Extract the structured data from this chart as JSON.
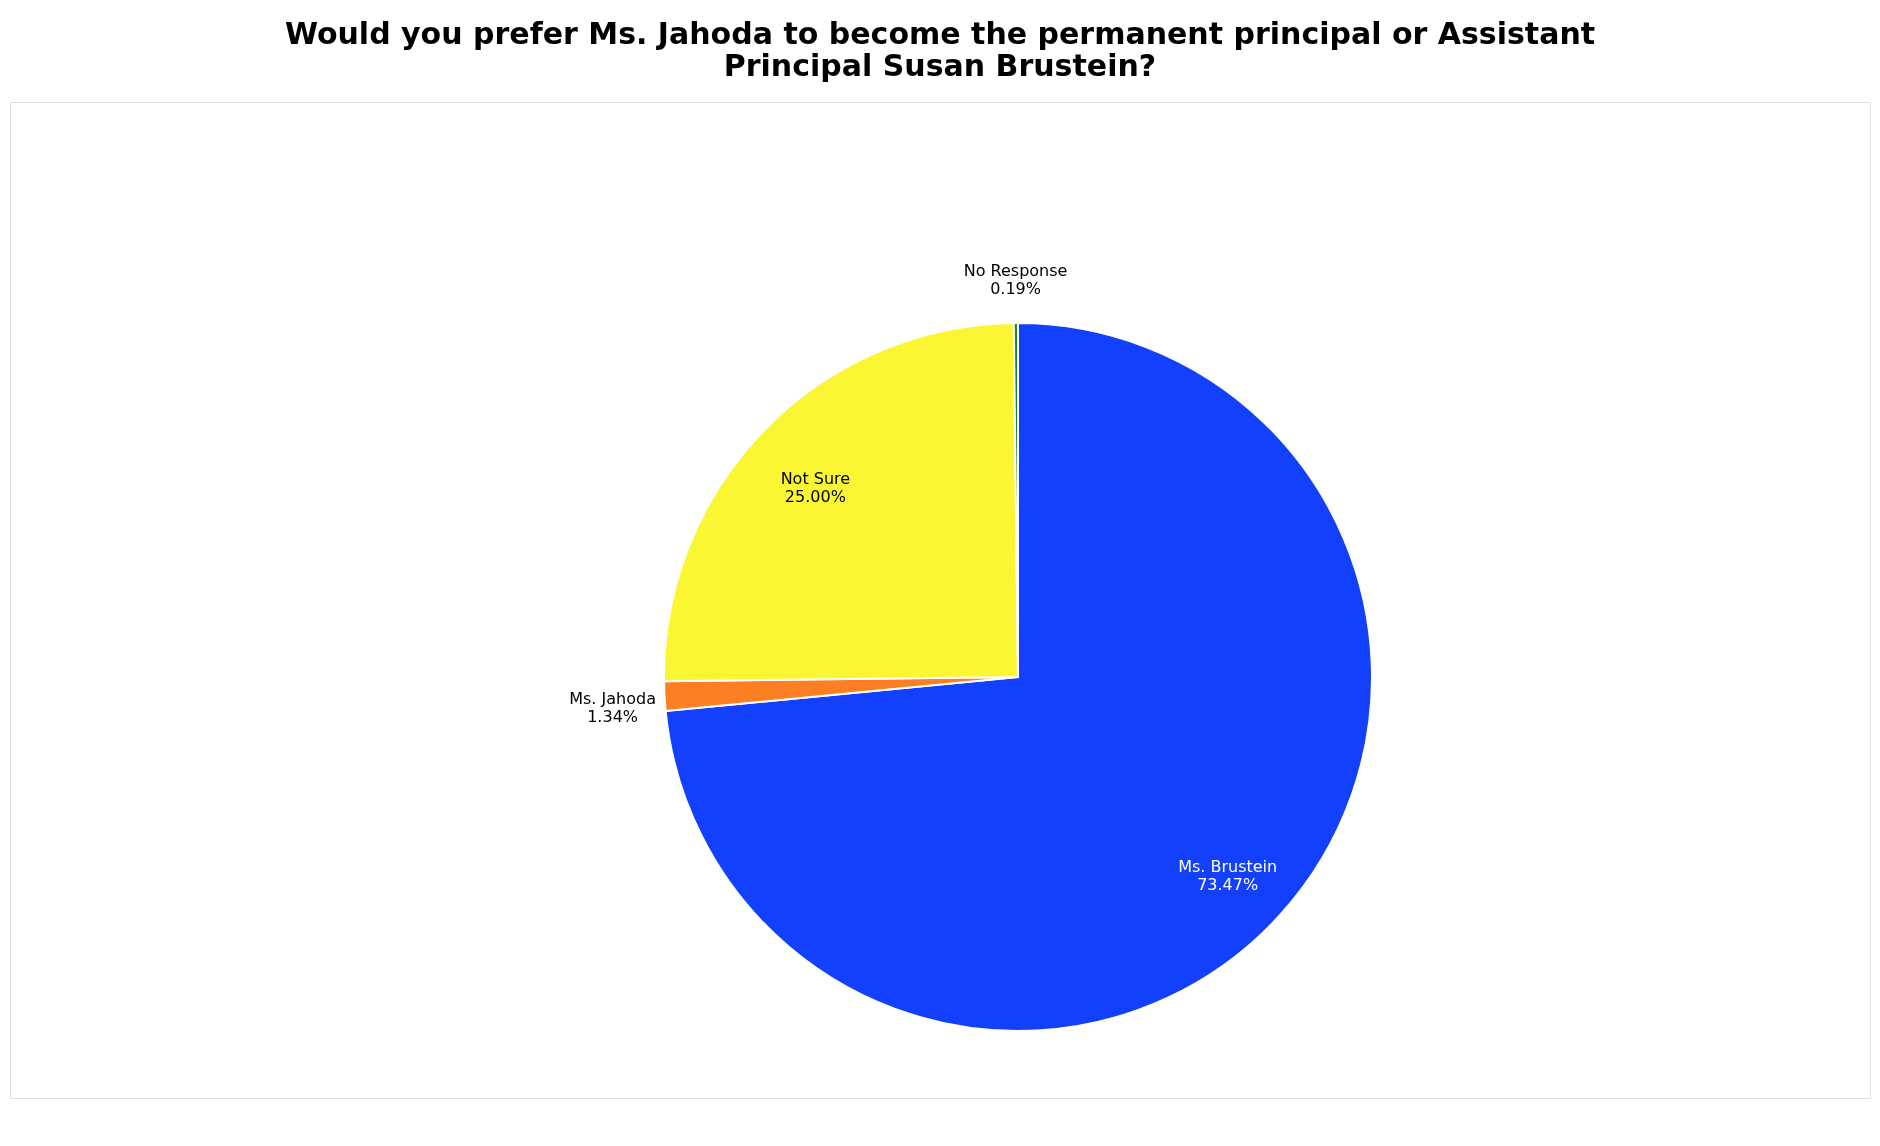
{
  "chart_data": {
    "type": "pie",
    "title": "Would you prefer Ms. Jahoda to become the permanent principal or Assistant Principal Susan Brustein?",
    "categories": [
      "Ms. Brustein",
      "Ms. Jahoda",
      "Not Sure",
      "No Response"
    ],
    "values": [
      73.47,
      1.34,
      25.0,
      0.19
    ],
    "value_labels": [
      "73.47%",
      "1.34%",
      "25.00%",
      "0.19%"
    ],
    "colors": [
      "#1240fc",
      "#fd7f23",
      "#fbf634",
      "#1a8a1a"
    ],
    "legend": false
  }
}
